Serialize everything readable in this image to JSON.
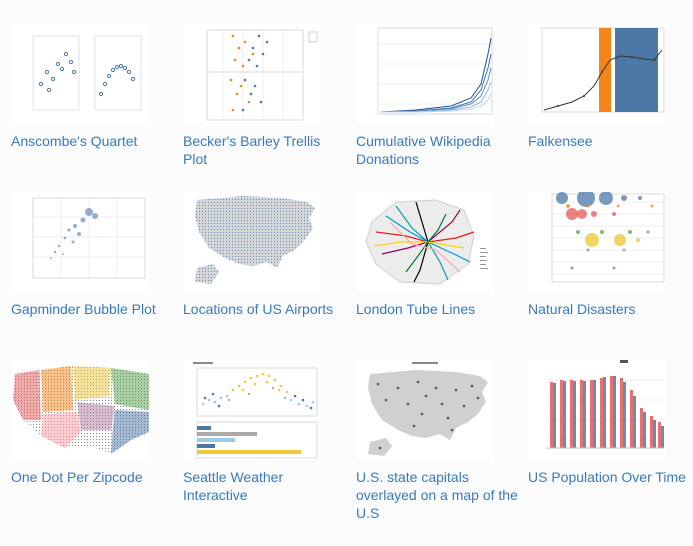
{
  "gallery": {
    "items": [
      {
        "title": "Anscombe's Quartet",
        "thumb": "anscombe-quartet-thumbnail"
      },
      {
        "title": "Becker's Barley Trellis Plot",
        "thumb": "barley-trellis-thumbnail"
      },
      {
        "title": "Cumulative Wikipedia Donations",
        "thumb": "wikipedia-donations-thumbnail"
      },
      {
        "title": "Falkensee",
        "thumb": "falkensee-thumbnail"
      },
      {
        "title": "Gapminder Bubble Plot",
        "thumb": "gapminder-thumbnail"
      },
      {
        "title": "Locations of US Airports",
        "thumb": "us-airports-map-thumbnail"
      },
      {
        "title": "London Tube Lines",
        "thumb": "london-tube-map-thumbnail"
      },
      {
        "title": "Natural Disasters",
        "thumb": "natural-disasters-thumbnail"
      },
      {
        "title": "One Dot Per Zipcode",
        "thumb": "zipcode-dot-map-thumbnail"
      },
      {
        "title": "Seattle Weather Interactive",
        "thumb": "seattle-weather-thumbnail"
      },
      {
        "title": "U.S. state capitals overlayed on a map of the U.S",
        "thumb": "state-capitals-map-thumbnail"
      },
      {
        "title": "US Population Over Time",
        "thumb": "us-population-thumbnail"
      }
    ]
  },
  "colors": {
    "link": "#3b7ab8",
    "accent_blue": "#4c78a8",
    "accent_orange": "#f58518"
  }
}
